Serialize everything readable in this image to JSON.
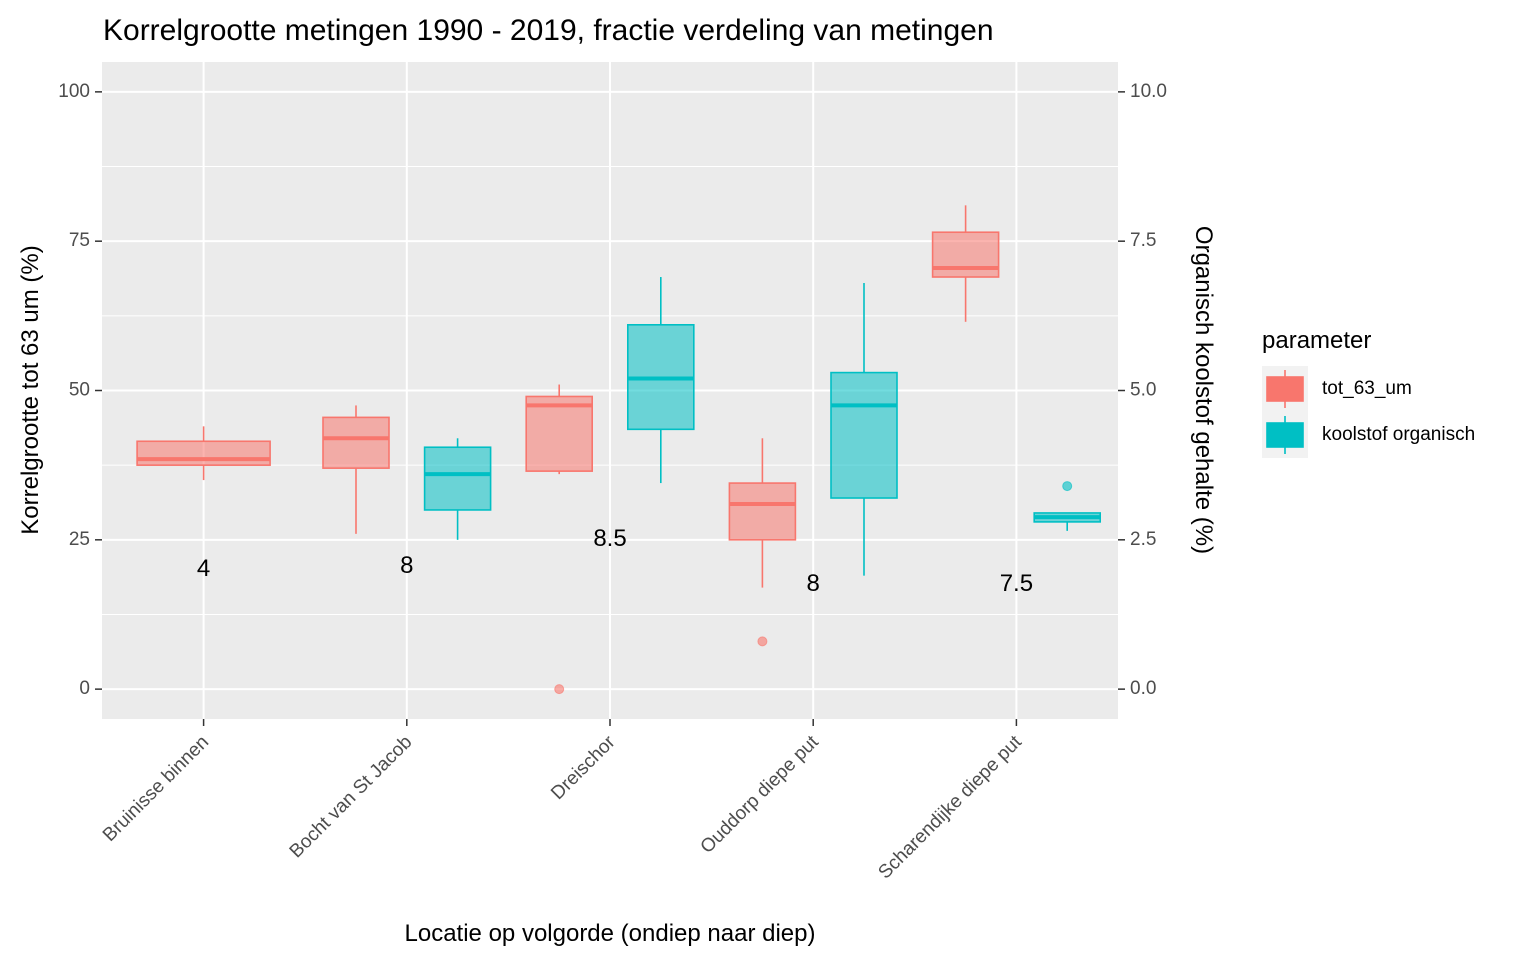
{
  "chart_data": {
    "type": "boxplot",
    "title": "Korrelgrootte metingen 1990 - 2019, fractie verdeling van metingen",
    "xlabel": "Locatie op volgorde (ondiep naar diep)",
    "ylabel": "Korrelgrootte tot 63 um (%)",
    "y2label": "Organisch koolstof gehalte (%)",
    "ylim": [
      -5,
      105
    ],
    "y2lim": [
      -0.5,
      10.5
    ],
    "yticks": [
      0,
      25,
      50,
      75,
      100
    ],
    "ytick_labels": [
      "0",
      "25",
      "50",
      "75",
      "100"
    ],
    "y2ticks": [
      0,
      2.5,
      5,
      7.5,
      10
    ],
    "y2tick_labels": [
      "0.0",
      "2.5",
      "5.0",
      "7.5",
      "10.0"
    ],
    "grid": true,
    "legend_position": "right",
    "legend_title": "parameter",
    "categories": [
      "Bruinisse binnen",
      "Bocht van St Jacob",
      "Dreischor",
      "Ouddorp diepe put",
      "Scharendijke diepe put"
    ],
    "count_labels": [
      {
        "category": "Bruinisse binnen",
        "text": "4",
        "y": 20
      },
      {
        "category": "Bocht van St Jacob",
        "text": "8",
        "y": 20.5
      },
      {
        "category": "Dreischor",
        "text": "8.5",
        "y": 25
      },
      {
        "category": "Ouddorp diepe put",
        "text": "8",
        "y": 17.5
      },
      {
        "category": "Scharendijke diepe put",
        "text": "7.5",
        "y": 17.5
      }
    ],
    "series": [
      {
        "name": "tot_63_um",
        "axis": "left",
        "color": "#F8766D",
        "boxes": [
          {
            "category": "Bruinisse binnen",
            "min": 35,
            "q1": 37.5,
            "median": 38.5,
            "q3": 41.5,
            "max": 44,
            "outliers": []
          },
          {
            "category": "Bocht van St Jacob",
            "min": 26,
            "q1": 37,
            "median": 42,
            "q3": 45.5,
            "max": 47.5,
            "outliers": []
          },
          {
            "category": "Dreischor",
            "min": 36,
            "q1": 36.5,
            "median": 47.5,
            "q3": 49,
            "max": 51,
            "outliers": [
              0
            ]
          },
          {
            "category": "Ouddorp diepe put",
            "min": 17,
            "q1": 25,
            "median": 31,
            "q3": 34.5,
            "max": 42,
            "outliers": [
              8
            ]
          },
          {
            "category": "Scharendijke diepe put",
            "min": 61.5,
            "q1": 69,
            "median": 70.5,
            "q3": 76.5,
            "max": 81,
            "outliers": []
          }
        ]
      },
      {
        "name": "koolstof organisch",
        "axis": "right",
        "color": "#00BFC4",
        "boxes": [
          {
            "category": "Bocht van St Jacob",
            "min": 2.5,
            "q1": 3.0,
            "median": 3.6,
            "q3": 4.05,
            "max": 4.2,
            "outliers": []
          },
          {
            "category": "Dreischor",
            "min": 3.45,
            "q1": 4.35,
            "median": 5.2,
            "q3": 6.1,
            "max": 6.9,
            "outliers": []
          },
          {
            "category": "Ouddorp diepe put",
            "min": 1.9,
            "q1": 3.2,
            "median": 4.75,
            "q3": 5.3,
            "max": 6.8,
            "outliers": []
          },
          {
            "category": "Scharendijke diepe put",
            "min": 2.65,
            "q1": 2.8,
            "median": 2.88,
            "q3": 2.95,
            "max": 2.95,
            "outliers": [
              3.4
            ]
          }
        ]
      }
    ]
  }
}
